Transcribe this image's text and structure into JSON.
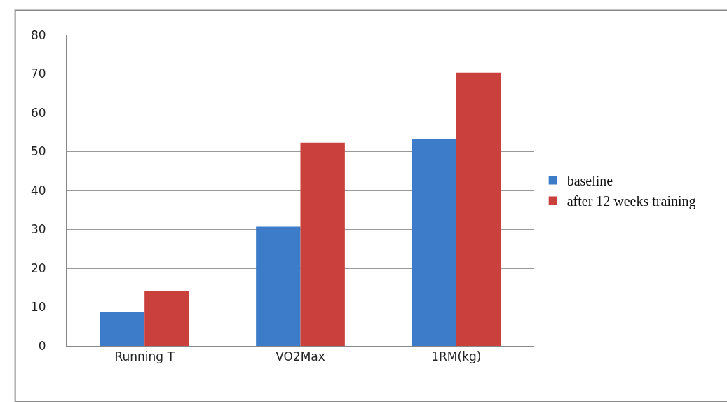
{
  "chart_data": {
    "type": "bar",
    "categories": [
      "Running T",
      "VO2Max",
      "1RM(kg)"
    ],
    "series": [
      {
        "name": "baseline",
        "color": "#3d7cc9",
        "values": [
          8.7,
          30.7,
          53.3
        ]
      },
      {
        "name": "after 12 weeks training",
        "color": "#c9403d",
        "values": [
          14.2,
          52.3,
          70.3
        ]
      }
    ],
    "ylim": [
      0,
      80
    ],
    "yticks": [
      0,
      10,
      20,
      30,
      40,
      50,
      60,
      70,
      80
    ],
    "grid": "y",
    "legend": "right"
  }
}
